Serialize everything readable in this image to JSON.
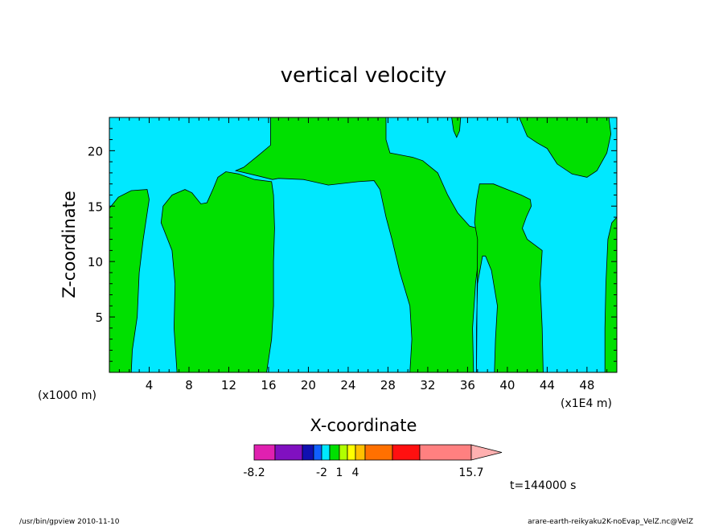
{
  "chart_data": {
    "type": "heatmap",
    "title": "vertical velocity",
    "xlabel": "X-coordinate",
    "ylabel": "Z-coordinate",
    "x_unit_left": "(x1000 m)",
    "x_unit_right": "(x1E4 m)",
    "xlim": [
      0,
      51
    ],
    "ylim": [
      0,
      23
    ],
    "x_ticks": [
      4,
      8,
      12,
      16,
      20,
      24,
      28,
      32,
      36,
      40,
      44,
      48
    ],
    "y_ticks": [
      5,
      10,
      15,
      20
    ],
    "field_colors": {
      "negative": "#00e8ff",
      "positive": "#00e000"
    },
    "colorbar": {
      "colors": [
        "#e020b0",
        "#8010c0",
        "#1010b0",
        "#1060ff",
        "#00e8ff",
        "#00e000",
        "#b0ff00",
        "#ffff00",
        "#ffc000",
        "#ff7000",
        "#ff1010",
        "#ff8080",
        "#ffb0b0"
      ],
      "tick_labels": [
        "-8.2",
        "-2",
        "1",
        "4",
        "15.7"
      ]
    },
    "time_label": "t=144000 s",
    "footer_left": "/usr/bin/gpview   2010-11-10",
    "footer_right": "arare-earth-reikyaku2K-noEvap_VelZ.nc@VelZ"
  }
}
